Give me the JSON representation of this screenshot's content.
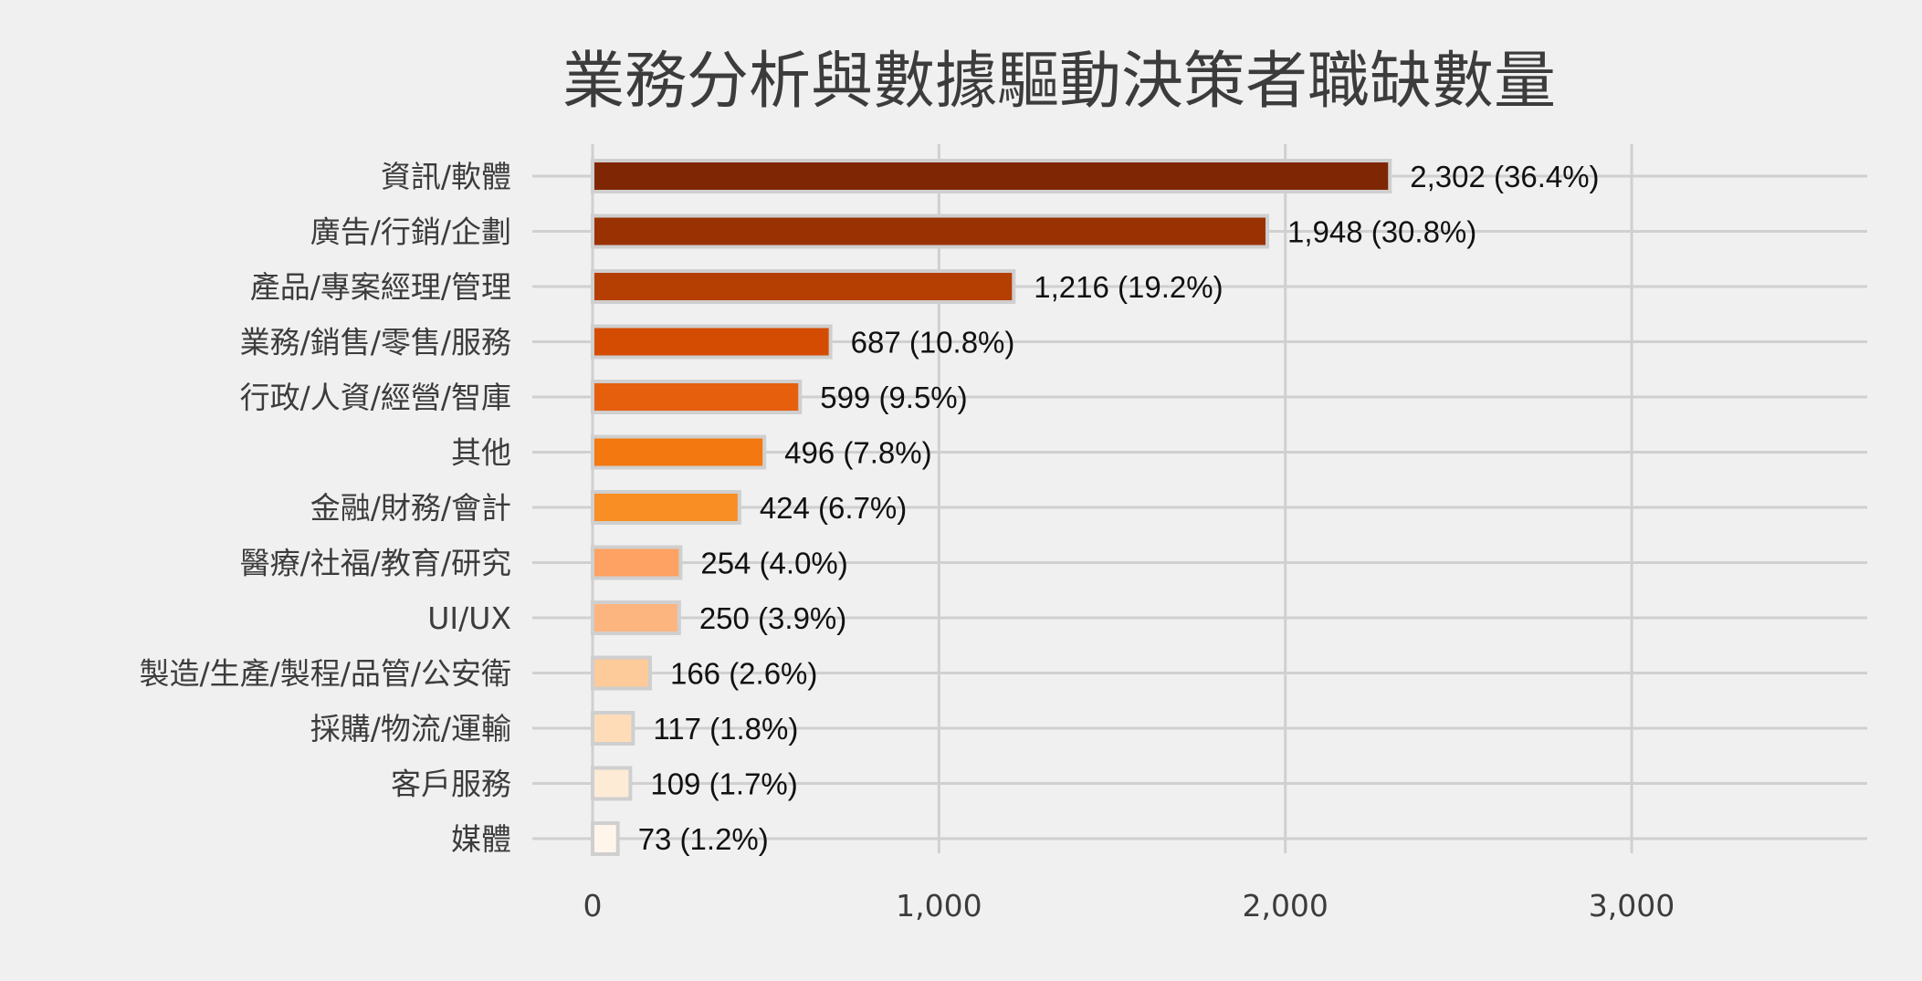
{
  "chart_data": {
    "type": "bar",
    "orientation": "horizontal",
    "title": "業務分析與數據驅動決策者職缺數量",
    "categories": [
      "資訊/軟體",
      "廣告/行銷/企劃",
      "產品/專案經理/管理",
      "業務/銷售/零售/服務",
      "行政/人資/經營/智庫",
      "其他",
      "金融/財務/會計",
      "醫療/社福/教育/研究",
      "UI/UX",
      "製造/生產/製程/品管/公安衛",
      "採購/物流/運輸",
      "客戶服務",
      "媒體"
    ],
    "values": [
      2302,
      1948,
      1216,
      687,
      599,
      496,
      424,
      254,
      250,
      166,
      117,
      109,
      73
    ],
    "data_labels": [
      "2,302 (36.4%)",
      "1,948 (30.8%)",
      "1,216 (19.2%)",
      "687 (10.8%)",
      "599 (9.5%)",
      "496 (7.8%)",
      "424 (6.7%)",
      "254 (4.0%)",
      "250 (3.9%)",
      "166 (2.6%)",
      "117 (1.8%)",
      "109 (1.7%)",
      "73 (1.2%)"
    ],
    "bar_colors": [
      "#7f2704",
      "#993103",
      "#b53f02",
      "#d34c01",
      "#e65f0c",
      "#f3780f",
      "#f98e24",
      "#fda262",
      "#fdb57f",
      "#fdca99",
      "#fedcb8",
      "#feebd6",
      "#fff5eb"
    ],
    "xticks": [
      0,
      1000,
      2000,
      3000
    ],
    "xtick_labels": [
      "0",
      "1,000",
      "2,000",
      "3,000"
    ],
    "xlim": [
      0,
      3680
    ],
    "xlabel": "",
    "ylabel": "",
    "grid": true
  }
}
